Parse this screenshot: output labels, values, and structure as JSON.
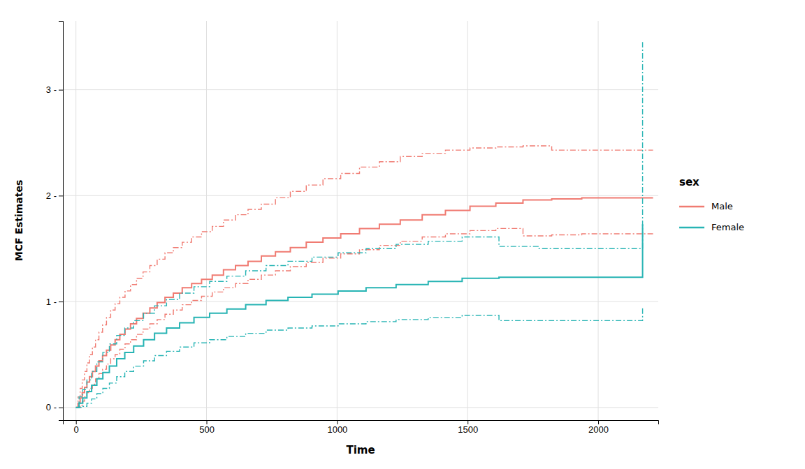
{
  "chart_data": {
    "type": "step",
    "xlabel": "Time",
    "ylabel": "MCF Estimates",
    "legend_title": "sex",
    "legend": "right",
    "grid": true,
    "xlim": [
      -50,
      2230
    ],
    "ylim": [
      -0.12,
      3.65
    ],
    "xticks": [
      0,
      500,
      1000,
      1500,
      2000
    ],
    "yticks": [
      {
        "value": 0,
        "label": "0 -"
      },
      {
        "value": 1,
        "label": "1 -"
      },
      {
        "value": 2,
        "label": "2 -"
      },
      {
        "value": 3,
        "label": "3 -"
      }
    ],
    "series": [
      {
        "name": "Male",
        "color": "#f07b72",
        "x": [
          0,
          8,
          16,
          24,
          33,
          42,
          52,
          63,
          75,
          88,
          102,
          117,
          133,
          150,
          168,
          188,
          209,
          232,
          257,
          283,
          311,
          341,
          373,
          407,
          443,
          481,
          522,
          565,
          611,
          659,
          710,
          764,
          821,
          882,
          946,
          1014,
          1086,
          1162,
          1242,
          1326,
          1415,
          1509,
          1608,
          1712,
          1822,
          1937,
          2058,
          2130,
          2180,
          2210
        ],
        "values": [
          0,
          0.04,
          0.09,
          0.14,
          0.19,
          0.24,
          0.29,
          0.34,
          0.39,
          0.44,
          0.49,
          0.54,
          0.59,
          0.64,
          0.69,
          0.74,
          0.79,
          0.84,
          0.89,
          0.94,
          0.99,
          1.04,
          1.08,
          1.13,
          1.17,
          1.21,
          1.25,
          1.3,
          1.34,
          1.38,
          1.43,
          1.47,
          1.51,
          1.56,
          1.6,
          1.64,
          1.69,
          1.73,
          1.77,
          1.82,
          1.86,
          1.9,
          1.93,
          1.96,
          1.97,
          1.98,
          1.98,
          1.98,
          1.98,
          1.98
        ],
        "lower": [
          0,
          0.0,
          0.02,
          0.06,
          0.1,
          0.14,
          0.18,
          0.22,
          0.27,
          0.32,
          0.36,
          0.41,
          0.46,
          0.5,
          0.55,
          0.6,
          0.64,
          0.69,
          0.74,
          0.79,
          0.83,
          0.88,
          0.92,
          0.97,
          1.01,
          1.05,
          1.09,
          1.13,
          1.17,
          1.21,
          1.25,
          1.29,
          1.33,
          1.37,
          1.41,
          1.45,
          1.49,
          1.53,
          1.57,
          1.61,
          1.64,
          1.67,
          1.69,
          1.62,
          1.63,
          1.64,
          1.64,
          1.64,
          1.64,
          1.64
        ],
        "upper": [
          0,
          0.1,
          0.18,
          0.26,
          0.34,
          0.42,
          0.5,
          0.57,
          0.64,
          0.71,
          0.78,
          0.85,
          0.92,
          0.98,
          1.04,
          1.1,
          1.16,
          1.22,
          1.28,
          1.34,
          1.4,
          1.46,
          1.51,
          1.56,
          1.61,
          1.66,
          1.71,
          1.77,
          1.82,
          1.87,
          1.92,
          1.98,
          2.04,
          2.1,
          2.16,
          2.21,
          2.27,
          2.32,
          2.37,
          2.4,
          2.43,
          2.45,
          2.46,
          2.47,
          2.43,
          2.43,
          2.43,
          2.43,
          2.43,
          2.43
        ]
      },
      {
        "name": "Female",
        "color": "#27b4b4",
        "x": [
          0,
          12,
          26,
          42,
          60,
          80,
          103,
          128,
          156,
          187,
          221,
          259,
          301,
          347,
          397,
          452,
          512,
          578,
          650,
          728,
          812,
          904,
          1004,
          1111,
          1226,
          1349,
          1479,
          1620,
          1770,
          1930,
          2100,
          2150,
          2170
        ],
        "values": [
          0,
          0.04,
          0.09,
          0.15,
          0.21,
          0.27,
          0.33,
          0.39,
          0.46,
          0.52,
          0.58,
          0.64,
          0.7,
          0.75,
          0.8,
          0.85,
          0.89,
          0.93,
          0.97,
          1.01,
          1.04,
          1.07,
          1.1,
          1.13,
          1.16,
          1.19,
          1.22,
          1.23,
          1.23,
          1.23,
          1.23,
          1.23,
          1.73
        ],
        "lower": [
          0,
          0.0,
          0.01,
          0.04,
          0.08,
          0.13,
          0.18,
          0.23,
          0.29,
          0.34,
          0.39,
          0.44,
          0.49,
          0.53,
          0.57,
          0.61,
          0.64,
          0.67,
          0.7,
          0.73,
          0.75,
          0.77,
          0.79,
          0.81,
          0.83,
          0.85,
          0.87,
          0.82,
          0.82,
          0.82,
          0.82,
          0.82,
          0.95
        ],
        "upper": [
          0,
          0.1,
          0.17,
          0.26,
          0.34,
          0.43,
          0.52,
          0.6,
          0.68,
          0.75,
          0.82,
          0.89,
          0.96,
          1.02,
          1.08,
          1.14,
          1.19,
          1.24,
          1.29,
          1.34,
          1.38,
          1.42,
          1.46,
          1.5,
          1.54,
          1.57,
          1.61,
          1.52,
          1.5,
          1.5,
          1.5,
          1.5,
          3.45
        ]
      }
    ]
  }
}
